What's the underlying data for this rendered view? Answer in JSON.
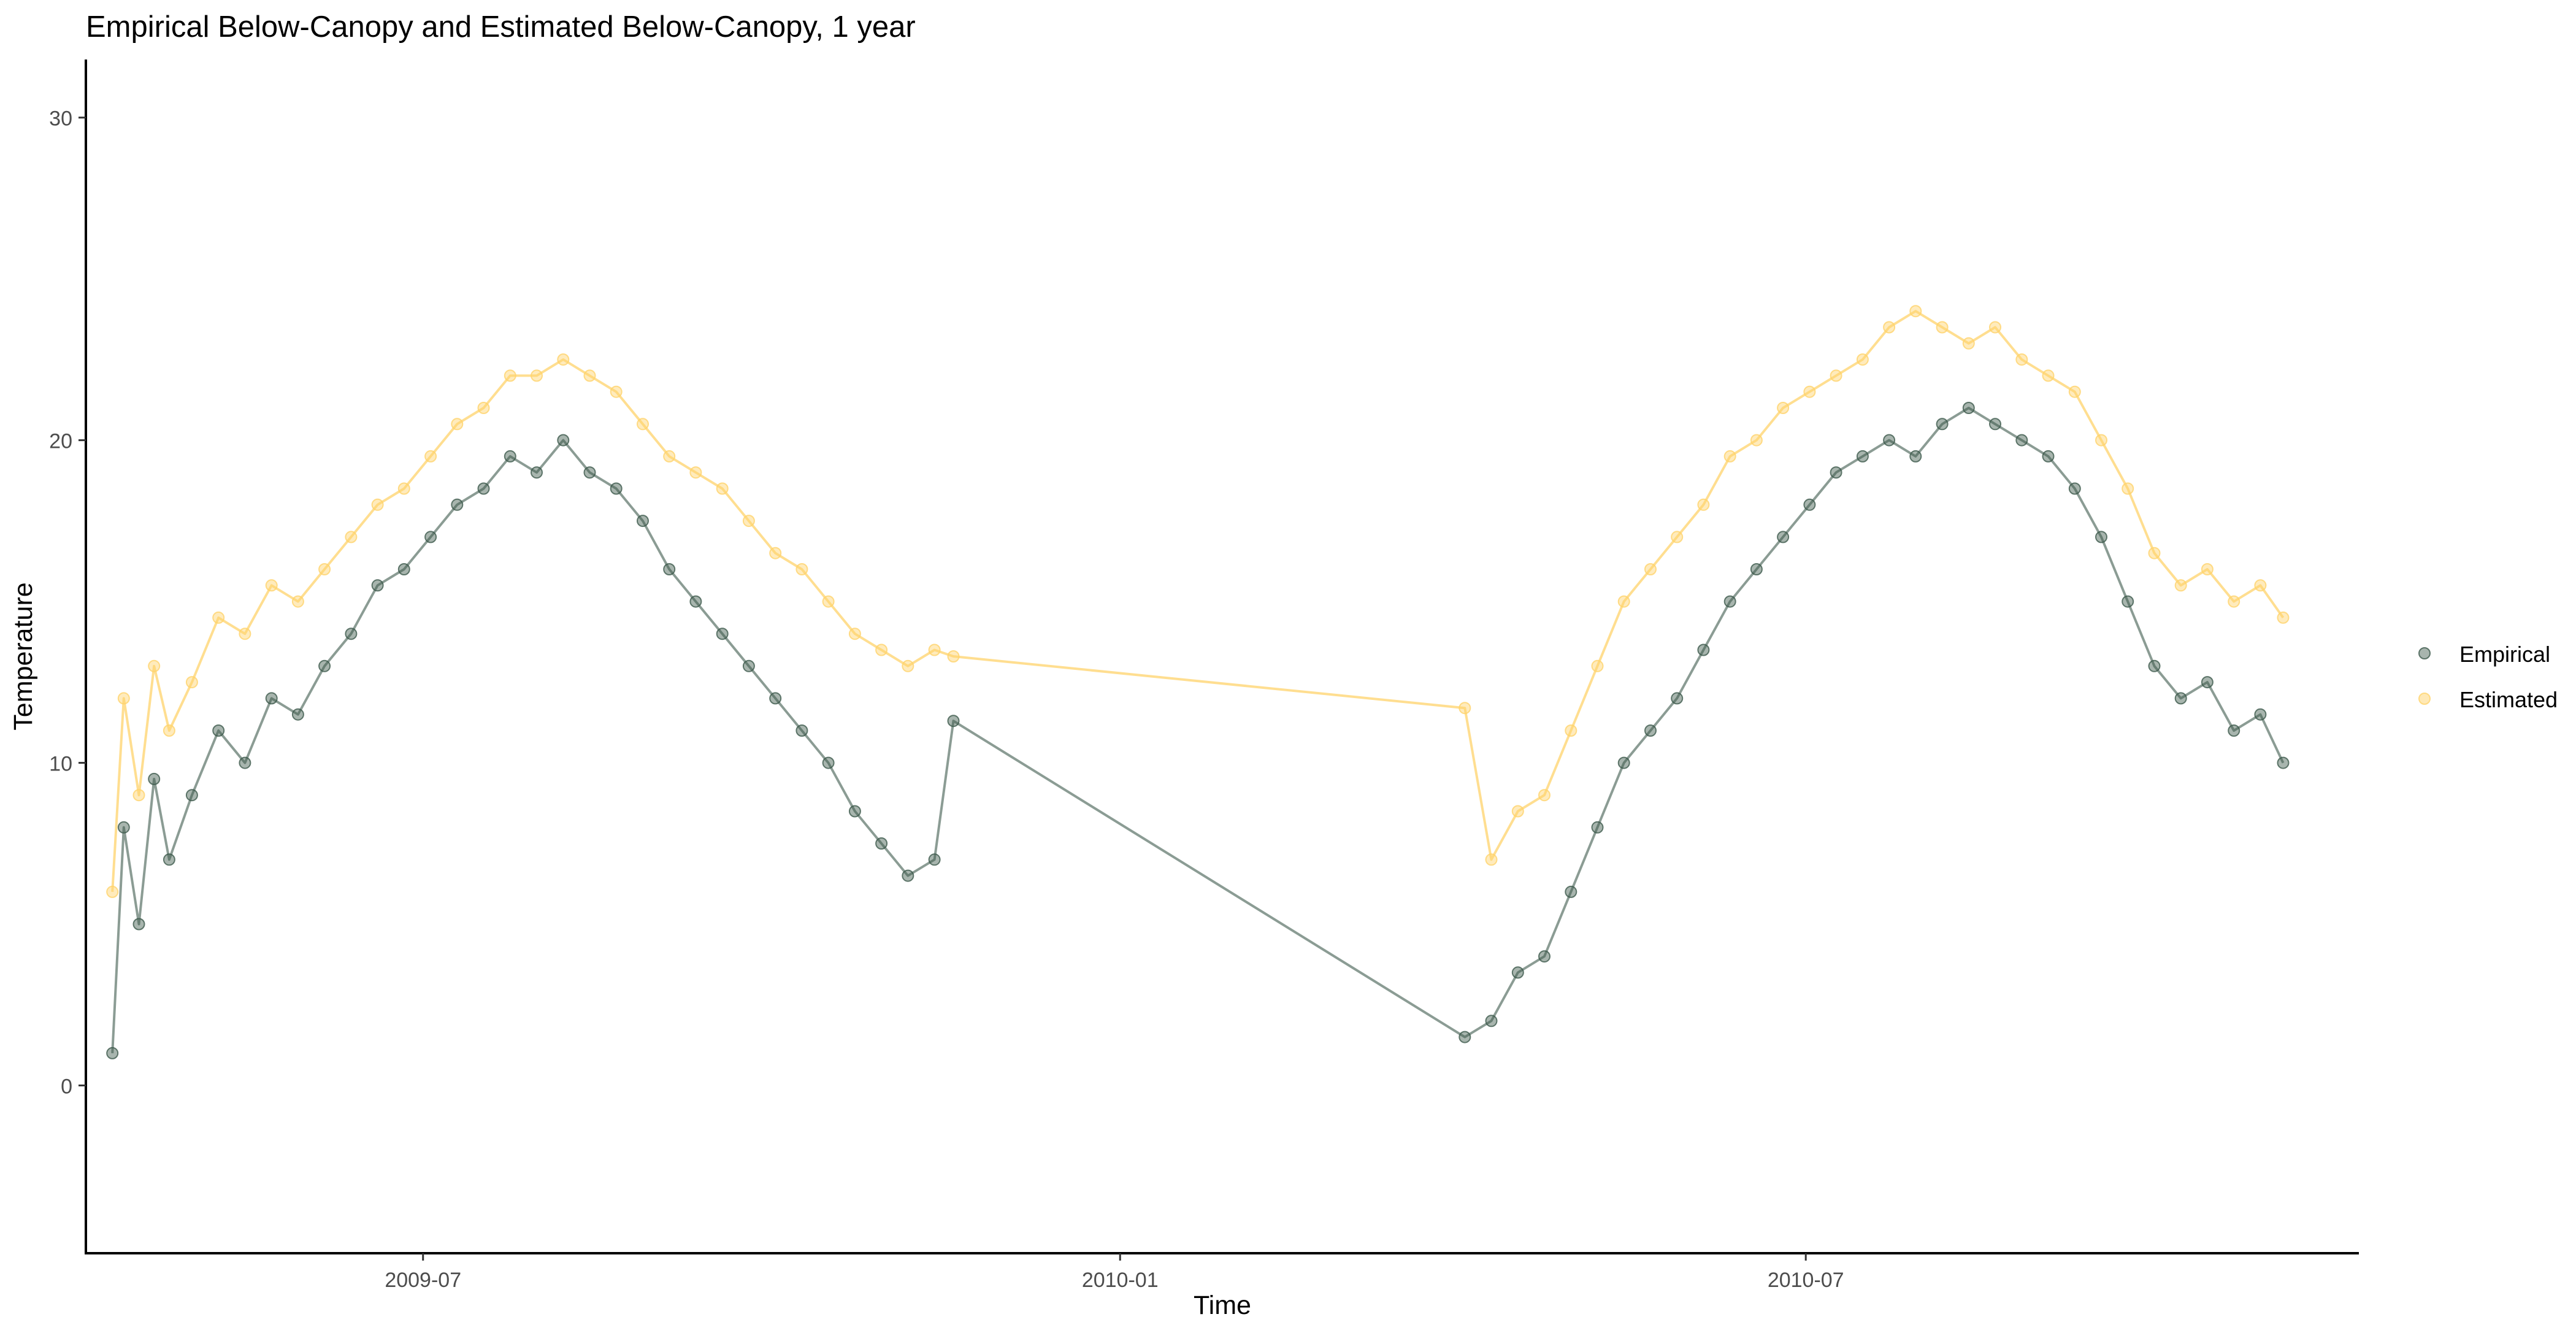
{
  "chart_data": {
    "type": "line",
    "title": "Empirical Below-Canopy and Estimated Below-Canopy, 1 year",
    "xlabel": "Time",
    "ylabel": "Temperature",
    "x_is_date": true,
    "xlim": [
      "2009-04-03",
      "2010-11-24"
    ],
    "ylim": [
      -5.2,
      31.8
    ],
    "x_ticks": [
      "2009-07",
      "2010-01",
      "2010-07"
    ],
    "y_ticks": [
      0,
      10,
      20,
      30
    ],
    "grid": false,
    "legend_position": "right",
    "markers": "points joined by lines",
    "series": [
      {
        "name": "Empirical",
        "color": "#3d5a4c",
        "x": [
          "2009-04-10",
          "2009-04-13",
          "2009-04-17",
          "2009-04-21",
          "2009-04-25",
          "2009-05-01",
          "2009-05-08",
          "2009-05-15",
          "2009-05-22",
          "2009-05-29",
          "2009-06-05",
          "2009-06-12",
          "2009-06-19",
          "2009-06-26",
          "2009-07-03",
          "2009-07-10",
          "2009-07-17",
          "2009-07-24",
          "2009-07-31",
          "2009-08-07",
          "2009-08-14",
          "2009-08-21",
          "2009-08-28",
          "2009-09-04",
          "2009-09-11",
          "2009-09-18",
          "2009-09-25",
          "2009-10-02",
          "2009-10-09",
          "2009-10-16",
          "2009-10-23",
          "2009-10-30",
          "2009-11-06",
          "2009-11-13",
          "2009-11-18",
          "2010-04-02",
          "2010-04-09",
          "2010-04-16",
          "2010-04-23",
          "2010-04-30",
          "2010-05-07",
          "2010-05-14",
          "2010-05-21",
          "2010-05-28",
          "2010-06-04",
          "2010-06-11",
          "2010-06-18",
          "2010-06-25",
          "2010-07-02",
          "2010-07-09",
          "2010-07-16",
          "2010-07-23",
          "2010-07-30",
          "2010-08-06",
          "2010-08-13",
          "2010-08-20",
          "2010-08-27",
          "2010-09-03",
          "2010-09-10",
          "2010-09-17",
          "2010-09-24",
          "2010-10-01",
          "2010-10-08",
          "2010-10-15",
          "2010-10-22",
          "2010-10-29",
          "2010-11-04"
        ],
        "y": [
          1.0,
          8.0,
          5.0,
          9.5,
          7.0,
          9.0,
          11.0,
          10.0,
          12.0,
          11.5,
          13.0,
          14.0,
          15.5,
          16.0,
          17.0,
          18.0,
          18.5,
          19.5,
          19.0,
          20.0,
          19.0,
          18.5,
          17.5,
          16.0,
          15.0,
          14.0,
          13.0,
          12.0,
          11.0,
          10.0,
          8.5,
          7.5,
          6.5,
          7.0,
          11.3,
          1.5,
          2.0,
          3.5,
          4.0,
          6.0,
          8.0,
          10.0,
          11.0,
          12.0,
          13.5,
          15.0,
          16.0,
          17.0,
          18.0,
          19.0,
          19.5,
          20.0,
          19.5,
          20.5,
          21.0,
          20.5,
          20.0,
          19.5,
          18.5,
          17.0,
          15.0,
          13.0,
          12.0,
          12.5,
          11.0,
          11.5,
          10.0
        ]
      },
      {
        "name": "Estimated",
        "color": "#ffd36b",
        "x": [
          "2009-04-10",
          "2009-04-13",
          "2009-04-17",
          "2009-04-21",
          "2009-04-25",
          "2009-05-01",
          "2009-05-08",
          "2009-05-15",
          "2009-05-22",
          "2009-05-29",
          "2009-06-05",
          "2009-06-12",
          "2009-06-19",
          "2009-06-26",
          "2009-07-03",
          "2009-07-10",
          "2009-07-17",
          "2009-07-24",
          "2009-07-31",
          "2009-08-07",
          "2009-08-14",
          "2009-08-21",
          "2009-08-28",
          "2009-09-04",
          "2009-09-11",
          "2009-09-18",
          "2009-09-25",
          "2009-10-02",
          "2009-10-09",
          "2009-10-16",
          "2009-10-23",
          "2009-10-30",
          "2009-11-06",
          "2009-11-13",
          "2009-11-18",
          "2010-04-02",
          "2010-04-09",
          "2010-04-16",
          "2010-04-23",
          "2010-04-30",
          "2010-05-07",
          "2010-05-14",
          "2010-05-21",
          "2010-05-28",
          "2010-06-04",
          "2010-06-11",
          "2010-06-18",
          "2010-06-25",
          "2010-07-02",
          "2010-07-09",
          "2010-07-16",
          "2010-07-23",
          "2010-07-30",
          "2010-08-06",
          "2010-08-13",
          "2010-08-20",
          "2010-08-27",
          "2010-09-03",
          "2010-09-10",
          "2010-09-17",
          "2010-09-24",
          "2010-10-01",
          "2010-10-08",
          "2010-10-15",
          "2010-10-22",
          "2010-10-29",
          "2010-11-04"
        ],
        "y": [
          6.0,
          12.0,
          9.0,
          13.0,
          11.0,
          12.5,
          14.5,
          14.0,
          15.5,
          15.0,
          16.0,
          17.0,
          18.0,
          18.5,
          19.5,
          20.5,
          21.0,
          22.0,
          22.0,
          22.5,
          22.0,
          21.5,
          20.5,
          19.5,
          19.0,
          18.5,
          17.5,
          16.5,
          16.0,
          15.0,
          14.0,
          13.5,
          13.0,
          13.5,
          13.3,
          11.7,
          7.0,
          8.5,
          9.0,
          11.0,
          13.0,
          15.0,
          16.0,
          17.0,
          18.0,
          19.5,
          20.0,
          21.0,
          21.5,
          22.0,
          22.5,
          23.5,
          24.0,
          23.5,
          23.0,
          23.5,
          22.5,
          22.0,
          21.5,
          20.0,
          18.5,
          16.5,
          15.5,
          16.0,
          15.0,
          15.5,
          14.5
        ]
      }
    ]
  }
}
